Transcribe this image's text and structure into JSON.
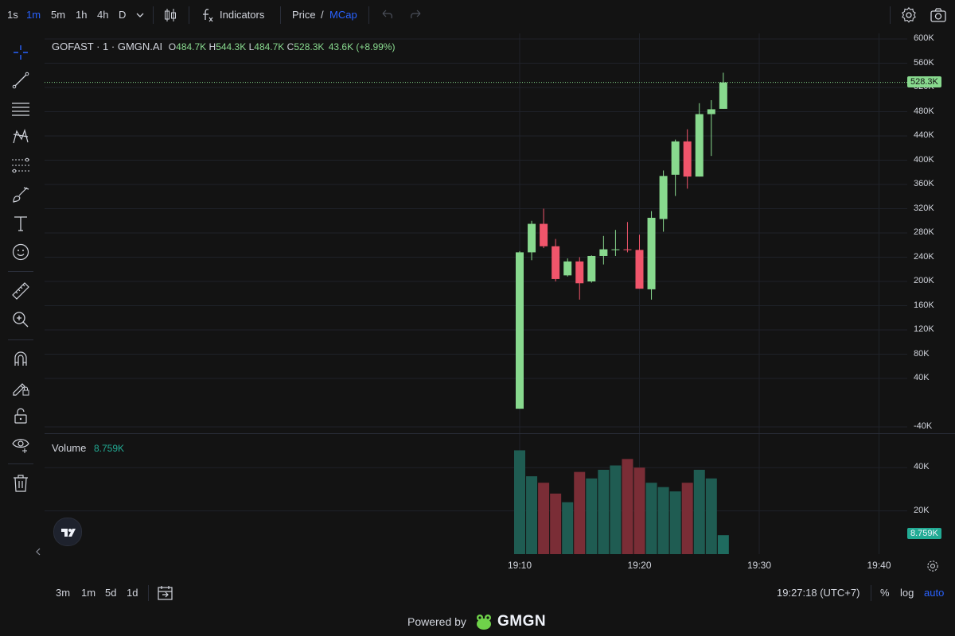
{
  "toolbar": {
    "timeframes": [
      {
        "label": "1s",
        "active": false
      },
      {
        "label": "1m",
        "active": true
      },
      {
        "label": "5m",
        "active": false
      },
      {
        "label": "1h",
        "active": false
      },
      {
        "label": "4h",
        "active": false
      },
      {
        "label": "D",
        "active": false
      }
    ],
    "indicators_label": "Indicators",
    "price_label": "Price",
    "slash": "/",
    "mcap_label": "MCap"
  },
  "legend": {
    "symbol": "GOFAST · 1 · GMGN.AI",
    "o_key": "O",
    "o_val": "484.7K",
    "h_key": "H",
    "h_val": "544.3K",
    "l_key": "L",
    "l_val": "484.7K",
    "c_key": "C",
    "c_val": "528.3K",
    "change": "43.6K (+8.99%)",
    "volume_label": "Volume",
    "volume_value": "8.759K"
  },
  "price_axis": {
    "ticks": [
      "600K",
      "560K",
      "520K",
      "480K",
      "440K",
      "400K",
      "360K",
      "320K",
      "280K",
      "240K",
      "200K",
      "160K",
      "120K",
      "80K",
      "40K",
      "-40K"
    ],
    "last_price_badge": "528.3K",
    "volume_ticks": [
      "40K",
      "20K"
    ],
    "volume_badge": "8.759K"
  },
  "time_axis": {
    "ticks": [
      "19:10",
      "19:20",
      "19:30",
      "19:40"
    ]
  },
  "bottom": {
    "ranges": [
      "3m",
      "1m",
      "5d",
      "1d"
    ],
    "clock": "19:27:18 (UTC+7)",
    "percent_label": "%",
    "log_label": "log",
    "auto_label": "auto"
  },
  "footer": {
    "powered_by": "Powered by",
    "brand": "GMGN"
  },
  "colors": {
    "up": "#88d98e",
    "down": "#f0556b",
    "vol_up": "#1f5c52",
    "vol_down": "#7a2d36",
    "accent": "#2962ff",
    "bg": "#131313"
  },
  "chart_data": {
    "type": "candlestick",
    "x": [
      "19:10",
      "19:11",
      "19:12",
      "19:13",
      "19:14",
      "19:15",
      "19:16",
      "19:17",
      "19:18",
      "19:19",
      "19:20",
      "19:21",
      "19:22",
      "19:23",
      "19:24",
      "19:25",
      "19:26",
      "19:27"
    ],
    "ohlc": [
      {
        "o": -10,
        "h": 250,
        "l": -10,
        "c": 248
      },
      {
        "o": 248,
        "h": 300,
        "l": 235,
        "c": 295
      },
      {
        "o": 295,
        "h": 320,
        "l": 255,
        "c": 258
      },
      {
        "o": 258,
        "h": 270,
        "l": 200,
        "c": 204
      },
      {
        "o": 210,
        "h": 238,
        "l": 208,
        "c": 233
      },
      {
        "o": 233,
        "h": 240,
        "l": 170,
        "c": 197
      },
      {
        "o": 200,
        "h": 243,
        "l": 198,
        "c": 242
      },
      {
        "o": 242,
        "h": 275,
        "l": 228,
        "c": 253
      },
      {
        "o": 253,
        "h": 285,
        "l": 242,
        "c": 253
      },
      {
        "o": 253,
        "h": 298,
        "l": 248,
        "c": 252
      },
      {
        "o": 252,
        "h": 277,
        "l": 188,
        "c": 188
      },
      {
        "o": 187,
        "h": 316,
        "l": 170,
        "c": 305
      },
      {
        "o": 303,
        "h": 383,
        "l": 282,
        "c": 374
      },
      {
        "o": 376,
        "h": 434,
        "l": 341,
        "c": 431
      },
      {
        "o": 431,
        "h": 451,
        "l": 353,
        "c": 373
      },
      {
        "o": 373,
        "h": 494,
        "l": 373,
        "c": 476
      },
      {
        "o": 476,
        "h": 499,
        "l": 407,
        "c": 484
      },
      {
        "o": 484.7,
        "h": 544.3,
        "l": 484.7,
        "c": 528.3
      }
    ],
    "volume": [
      48,
      36,
      33,
      28,
      24,
      38,
      35,
      39,
      41,
      44,
      40,
      33,
      31,
      29,
      33,
      39,
      35,
      8.759
    ],
    "volume_dir": [
      "up",
      "up",
      "down",
      "down",
      "up",
      "down",
      "up",
      "up",
      "up",
      "down",
      "down",
      "up",
      "up",
      "up",
      "down",
      "up",
      "up",
      "up"
    ],
    "ylim": [
      -40,
      600
    ],
    "volume_ylim": [
      0,
      50
    ]
  }
}
